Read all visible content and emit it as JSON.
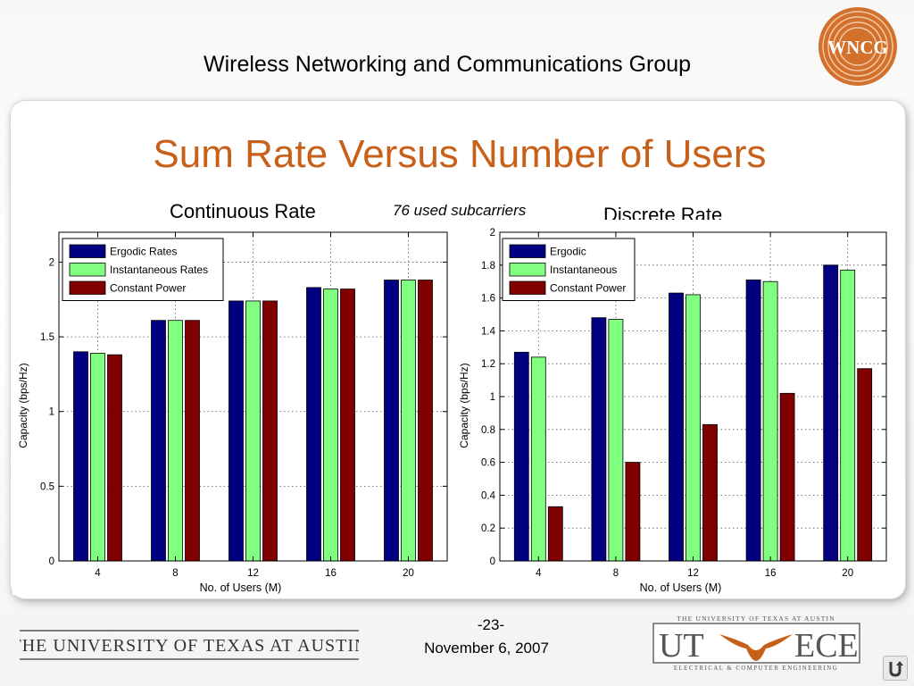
{
  "header": {
    "title": "Wireless Networking and Communications Group"
  },
  "logo": {
    "text": "WNCG"
  },
  "slide": {
    "title": "Sum Rate Versus Number of Users",
    "note": "76 used subcarriers"
  },
  "footer": {
    "university": "THE UNIVERSITY OF TEXAS AT AUSTIN",
    "page": "-23-",
    "date": "November 6, 2007",
    "ut_ece": {
      "top_text": "THE UNIVERSITY OF TEXAS AT AUSTIN",
      "ut": "UT",
      "ece": "ECE",
      "bottom_text": "ELECTRICAL & COMPUTER ENGINEERING"
    }
  },
  "colors": {
    "blue": "#000080",
    "green": "#80ff80",
    "red": "#800000",
    "title_orange": "#c8601a",
    "logo_orange": "#d2702c"
  },
  "chart_data": [
    {
      "type": "bar",
      "title": "Continuous Rate",
      "xlabel": "No. of Users (M)",
      "ylabel": "Capacity (bps/Hz)",
      "categories": [
        "4",
        "8",
        "12",
        "16",
        "20"
      ],
      "ylim": [
        0,
        2.2
      ],
      "yticks": [
        0,
        0.5,
        1,
        1.5,
        2
      ],
      "ytick_labels": [
        "0",
        "0.5",
        "1",
        "1.5",
        "2"
      ],
      "grid": true,
      "legend_position": "top-left",
      "series": [
        {
          "name": "Ergodic Rates",
          "color": "#000080",
          "values": [
            1.4,
            1.61,
            1.74,
            1.83,
            1.88
          ]
        },
        {
          "name": "Instantaneous Rates",
          "color": "#80ff80",
          "values": [
            1.39,
            1.61,
            1.74,
            1.82,
            1.88
          ]
        },
        {
          "name": "Constant Power",
          "color": "#800000",
          "values": [
            1.38,
            1.61,
            1.74,
            1.82,
            1.88
          ]
        }
      ]
    },
    {
      "type": "bar",
      "title": "Discrete Rate",
      "xlabel": "No. of Users (M)",
      "ylabel": "Capacity (bps/Hz)",
      "categories": [
        "4",
        "8",
        "12",
        "16",
        "20"
      ],
      "ylim": [
        0,
        2
      ],
      "yticks": [
        0,
        0.2,
        0.4,
        0.6,
        0.8,
        1,
        1.2,
        1.4,
        1.6,
        1.8,
        2
      ],
      "ytick_labels": [
        "0",
        "0.2",
        "0.4",
        "0.6",
        "0.8",
        "1",
        "1.2",
        "1.4",
        "1.6",
        "1.8",
        "2"
      ],
      "grid": true,
      "legend_position": "top-left",
      "series": [
        {
          "name": "Ergodic",
          "color": "#000080",
          "values": [
            1.27,
            1.48,
            1.63,
            1.71,
            1.8
          ]
        },
        {
          "name": "Instantaneous",
          "color": "#80ff80",
          "values": [
            1.24,
            1.47,
            1.62,
            1.7,
            1.77
          ]
        },
        {
          "name": "Constant Power",
          "color": "#800000",
          "values": [
            0.33,
            0.6,
            0.83,
            1.02,
            1.17
          ]
        }
      ]
    }
  ]
}
